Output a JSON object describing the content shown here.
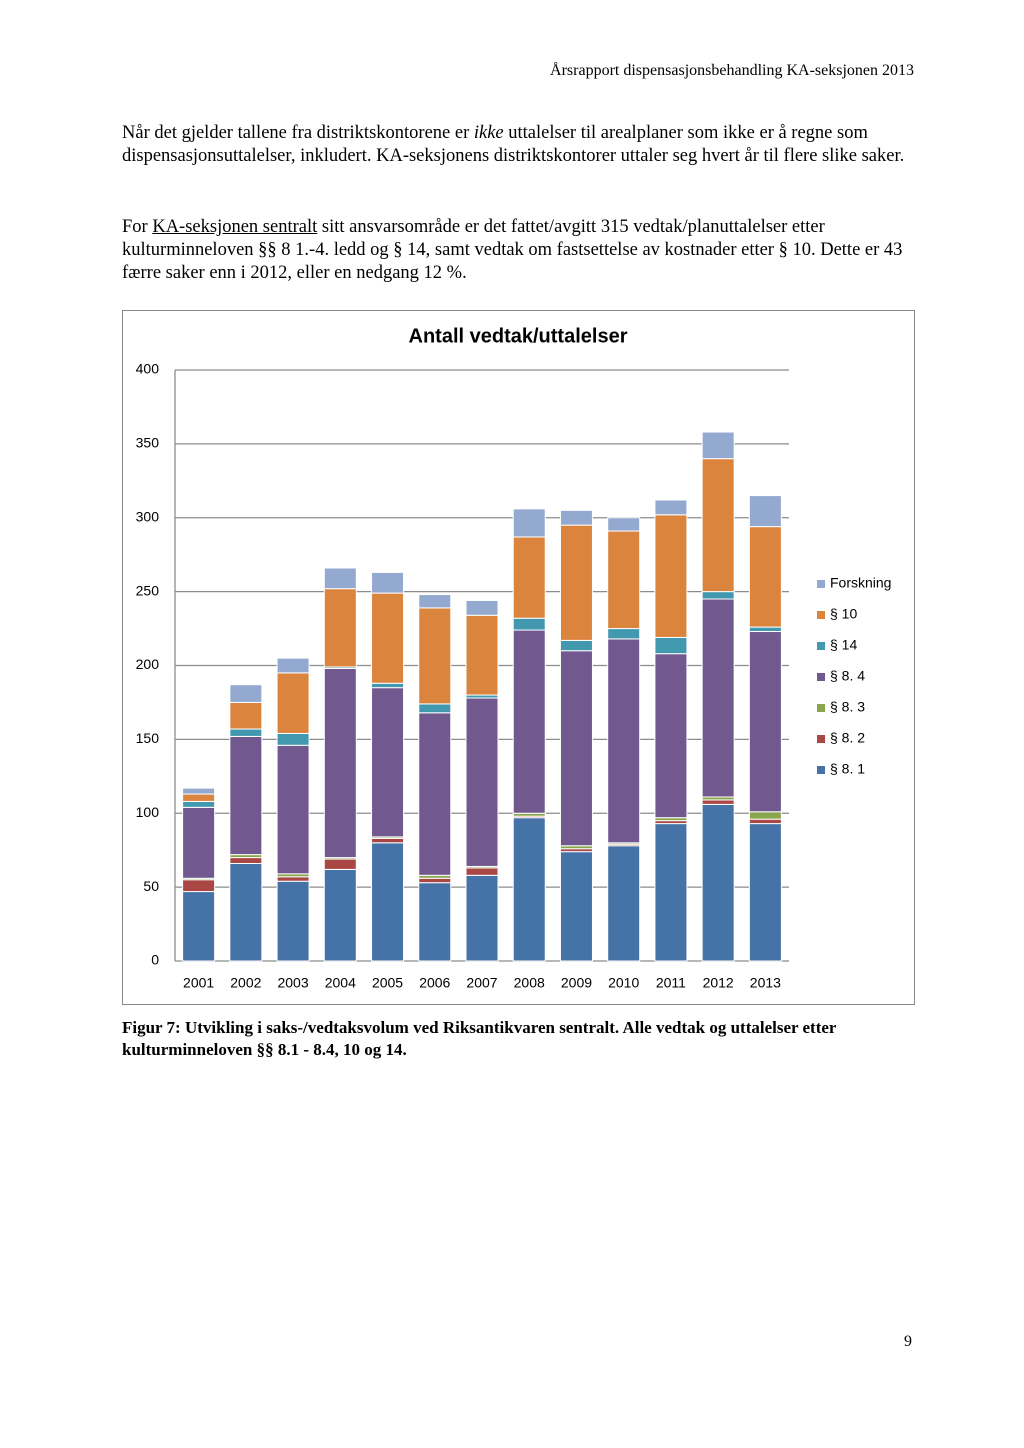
{
  "header": "Årsrapport dispensasjonsbehandling KA-seksjonen 2013",
  "paragraphs": [
    [
      "Når det gjelder tallene fra distriktskontorene er ",
      "ikke",
      " uttalelser til arealplaner som ikke er å regne som dispensasjonsuttalelser, inkludert. KA-seksjonens distriktskontorer uttaler seg hvert år til flere slike saker."
    ],
    [
      "For ",
      "KA-seksjonen sentralt",
      " sitt ansvarsområde er det fattet/avgitt 315 vedtak/planuttalelser etter kulturminneloven §§ 8 1.-4. ledd og § 14, samt vedtak om fastsettelse av kostnader etter § 10. Dette er 43 færre saker enn i 2012, eller en nedgang 12 %."
    ]
  ],
  "chart_data": {
    "type": "stacked_bar",
    "title": "Antall vedtak/uttalelser",
    "categories": [
      "2001",
      "2002",
      "2003",
      "2004",
      "2005",
      "2006",
      "2007",
      "2008",
      "2009",
      "2010",
      "2011",
      "2012",
      "2013"
    ],
    "series": [
      {
        "name": "§ 8. 1",
        "color": "#4572a7",
        "values": [
          47,
          66,
          54,
          62,
          80,
          53,
          58,
          97,
          74,
          78,
          93,
          106,
          93
        ]
      },
      {
        "name": "§ 8. 2",
        "color": "#aa4643",
        "values": [
          8,
          4,
          3,
          7,
          3,
          3,
          5,
          1,
          2,
          1,
          2,
          3,
          3
        ]
      },
      {
        "name": "§ 8. 3",
        "color": "#89a54e",
        "values": [
          1,
          2,
          2,
          1,
          1,
          2,
          1,
          2,
          2,
          1,
          2,
          2,
          5
        ]
      },
      {
        "name": "§ 8. 4",
        "color": "#71588f",
        "values": [
          48,
          80,
          87,
          128,
          101,
          110,
          114,
          124,
          132,
          138,
          111,
          134,
          122
        ]
      },
      {
        "name": "§ 14",
        "color": "#4198af",
        "values": [
          4,
          5,
          8,
          1,
          3,
          6,
          2,
          8,
          7,
          7,
          11,
          5,
          3
        ]
      },
      {
        "name": "§ 10",
        "color": "#db843d",
        "values": [
          5,
          18,
          41,
          53,
          61,
          65,
          54,
          55,
          78,
          66,
          83,
          90,
          68
        ]
      },
      {
        "name": "Forskning",
        "color": "#93a9cf",
        "values": [
          4,
          12,
          10,
          14,
          14,
          9,
          10,
          19,
          10,
          9,
          10,
          18,
          21
        ]
      }
    ],
    "ylim": [
      0,
      400
    ],
    "yticks": [
      0,
      50,
      100,
      150,
      200,
      250,
      300,
      350,
      400
    ],
    "grid": true,
    "legend": "right"
  },
  "caption": "Figur 7: Utvikling i saks-/vedtaksvolum ved Riksantikvaren sentralt. Alle vedtak og uttalelser etter kulturminneloven §§ 8.1 - 8.4, 10 og 14.",
  "page_number": "9"
}
